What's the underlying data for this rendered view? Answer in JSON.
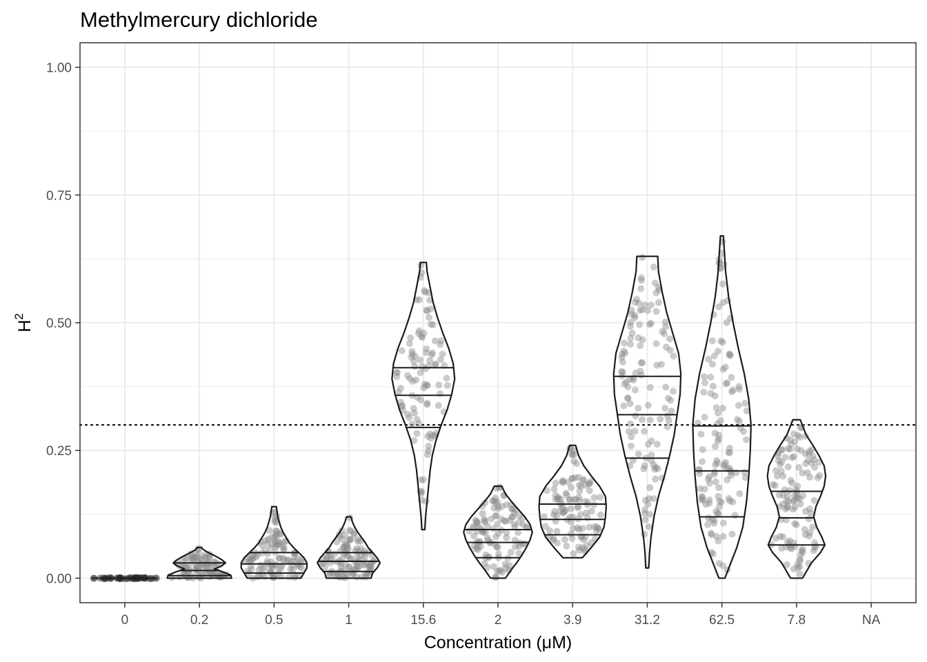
{
  "chart_data": {
    "type": "violin",
    "title": "Methylmercury dichloride",
    "xlabel": "Concentration (μM)",
    "ylabel_base": "H",
    "ylabel_sup": "2",
    "categories": [
      "0",
      "0.2",
      "0.5",
      "1",
      "15.6",
      "2",
      "3.9",
      "31.2",
      "62.5",
      "7.8",
      "NA"
    ],
    "ylim": [
      -0.048,
      1.048
    ],
    "yticks": [
      0.0,
      0.25,
      0.5,
      0.75,
      1.0
    ],
    "ytick_labels": [
      "0.00",
      "0.25",
      "0.50",
      "0.75",
      "1.00"
    ],
    "reference_line": 0.3,
    "grid": true,
    "colors": {
      "point": "#8c8c8c",
      "outline": "#1a1a1a",
      "grid": "#ebebeb",
      "refline": "#000000"
    },
    "groups": [
      {
        "category": "0",
        "min": 0.0,
        "max": 0.0,
        "q25": 0.0,
        "q50": 0.0,
        "q75": 0.0,
        "n": 0,
        "density": [],
        "points": []
      },
      {
        "category": "0.2",
        "min": 0.0,
        "max": 0.06,
        "q25": 0.005,
        "q50": 0.015,
        "q75": 0.03,
        "n": 90,
        "density": [
          [
            0.0,
            0.43
          ],
          [
            0.006,
            0.42
          ],
          [
            0.012,
            0.32
          ],
          [
            0.018,
            0.2
          ],
          [
            0.024,
            0.3
          ],
          [
            0.03,
            0.35
          ],
          [
            0.036,
            0.3
          ],
          [
            0.042,
            0.23
          ],
          [
            0.05,
            0.12
          ],
          [
            0.056,
            0.05
          ],
          [
            0.06,
            0.03
          ]
        ],
        "points": []
      },
      {
        "category": "0.5",
        "min": 0.0,
        "max": 0.14,
        "q25": 0.01,
        "q50": 0.028,
        "q75": 0.05,
        "n": 110,
        "density": [
          [
            0.0,
            0.36
          ],
          [
            0.01,
            0.4
          ],
          [
            0.02,
            0.44
          ],
          [
            0.03,
            0.44
          ],
          [
            0.04,
            0.4
          ],
          [
            0.05,
            0.33
          ],
          [
            0.06,
            0.26
          ],
          [
            0.07,
            0.2
          ],
          [
            0.08,
            0.16
          ],
          [
            0.09,
            0.12
          ],
          [
            0.1,
            0.09
          ],
          [
            0.11,
            0.07
          ],
          [
            0.12,
            0.05
          ],
          [
            0.13,
            0.04
          ],
          [
            0.14,
            0.03
          ]
        ],
        "points": []
      },
      {
        "category": "1",
        "min": 0.0,
        "max": 0.12,
        "q25": 0.013,
        "q50": 0.033,
        "q75": 0.05,
        "n": 110,
        "density": [
          [
            0.0,
            0.3
          ],
          [
            0.01,
            0.32
          ],
          [
            0.02,
            0.38
          ],
          [
            0.03,
            0.42
          ],
          [
            0.04,
            0.38
          ],
          [
            0.05,
            0.32
          ],
          [
            0.06,
            0.26
          ],
          [
            0.07,
            0.22
          ],
          [
            0.08,
            0.17
          ],
          [
            0.09,
            0.12
          ],
          [
            0.1,
            0.08
          ],
          [
            0.11,
            0.05
          ],
          [
            0.12,
            0.03
          ]
        ],
        "points": []
      },
      {
        "category": "15.6",
        "min": 0.095,
        "max": 0.618,
        "q25": 0.295,
        "q50": 0.358,
        "q75": 0.412,
        "n": 100,
        "density": [
          [
            0.095,
            0.02
          ],
          [
            0.12,
            0.03
          ],
          [
            0.15,
            0.05
          ],
          [
            0.18,
            0.07
          ],
          [
            0.21,
            0.09
          ],
          [
            0.24,
            0.12
          ],
          [
            0.27,
            0.17
          ],
          [
            0.3,
            0.24
          ],
          [
            0.33,
            0.32
          ],
          [
            0.36,
            0.38
          ],
          [
            0.39,
            0.42
          ],
          [
            0.42,
            0.4
          ],
          [
            0.45,
            0.34
          ],
          [
            0.48,
            0.26
          ],
          [
            0.51,
            0.19
          ],
          [
            0.54,
            0.13
          ],
          [
            0.57,
            0.09
          ],
          [
            0.6,
            0.05
          ],
          [
            0.618,
            0.04
          ]
        ],
        "points": []
      },
      {
        "category": "2",
        "min": 0.0,
        "max": 0.18,
        "q25": 0.04,
        "q50": 0.07,
        "q75": 0.095,
        "n": 110,
        "density": [
          [
            0.0,
            0.1
          ],
          [
            0.015,
            0.17
          ],
          [
            0.03,
            0.25
          ],
          [
            0.045,
            0.32
          ],
          [
            0.06,
            0.38
          ],
          [
            0.075,
            0.43
          ],
          [
            0.09,
            0.46
          ],
          [
            0.105,
            0.43
          ],
          [
            0.12,
            0.36
          ],
          [
            0.135,
            0.27
          ],
          [
            0.15,
            0.18
          ],
          [
            0.165,
            0.1
          ],
          [
            0.18,
            0.05
          ]
        ],
        "points": []
      },
      {
        "category": "3.9",
        "min": 0.04,
        "max": 0.26,
        "q25": 0.085,
        "q50": 0.115,
        "q75": 0.145,
        "n": 110,
        "density": [
          [
            0.04,
            0.13
          ],
          [
            0.06,
            0.25
          ],
          [
            0.08,
            0.36
          ],
          [
            0.1,
            0.42
          ],
          [
            0.12,
            0.44
          ],
          [
            0.14,
            0.45
          ],
          [
            0.16,
            0.44
          ],
          [
            0.18,
            0.36
          ],
          [
            0.2,
            0.25
          ],
          [
            0.22,
            0.15
          ],
          [
            0.24,
            0.08
          ],
          [
            0.26,
            0.04
          ]
        ],
        "points": []
      },
      {
        "category": "31.2",
        "min": 0.02,
        "max": 0.63,
        "q25": 0.235,
        "q50": 0.32,
        "q75": 0.395,
        "n": 120,
        "density": [
          [
            0.02,
            0.02
          ],
          [
            0.05,
            0.03
          ],
          [
            0.08,
            0.05
          ],
          [
            0.12,
            0.09
          ],
          [
            0.16,
            0.15
          ],
          [
            0.2,
            0.23
          ],
          [
            0.24,
            0.3
          ],
          [
            0.28,
            0.36
          ],
          [
            0.32,
            0.4
          ],
          [
            0.36,
            0.44
          ],
          [
            0.4,
            0.45
          ],
          [
            0.44,
            0.42
          ],
          [
            0.48,
            0.34
          ],
          [
            0.52,
            0.26
          ],
          [
            0.56,
            0.2
          ],
          [
            0.6,
            0.15
          ],
          [
            0.63,
            0.14
          ]
        ],
        "points": []
      },
      {
        "category": "62.5",
        "min": 0.0,
        "max": 0.67,
        "q25": 0.12,
        "q50": 0.21,
        "q75": 0.298,
        "n": 130,
        "density": [
          [
            0.0,
            0.04
          ],
          [
            0.03,
            0.12
          ],
          [
            0.06,
            0.2
          ],
          [
            0.1,
            0.28
          ],
          [
            0.15,
            0.33
          ],
          [
            0.2,
            0.36
          ],
          [
            0.25,
            0.38
          ],
          [
            0.3,
            0.39
          ],
          [
            0.35,
            0.36
          ],
          [
            0.4,
            0.3
          ],
          [
            0.45,
            0.22
          ],
          [
            0.5,
            0.15
          ],
          [
            0.55,
            0.09
          ],
          [
            0.6,
            0.05
          ],
          [
            0.67,
            0.02
          ]
        ],
        "points": []
      },
      {
        "category": "7.8",
        "min": 0.0,
        "max": 0.31,
        "q25": 0.065,
        "q50": 0.118,
        "q75": 0.17,
        "n": 120,
        "density": [
          [
            0.0,
            0.08
          ],
          [
            0.03,
            0.2
          ],
          [
            0.05,
            0.32
          ],
          [
            0.065,
            0.38
          ],
          [
            0.08,
            0.34
          ],
          [
            0.1,
            0.27
          ],
          [
            0.12,
            0.23
          ],
          [
            0.14,
            0.26
          ],
          [
            0.16,
            0.32
          ],
          [
            0.18,
            0.37
          ],
          [
            0.2,
            0.39
          ],
          [
            0.22,
            0.37
          ],
          [
            0.24,
            0.3
          ],
          [
            0.26,
            0.22
          ],
          [
            0.28,
            0.13
          ],
          [
            0.31,
            0.05
          ]
        ],
        "points": []
      },
      {
        "category": "NA",
        "min": null,
        "max": null,
        "q25": null,
        "q50": null,
        "q75": null,
        "n": 0,
        "density": [],
        "points": []
      }
    ]
  }
}
